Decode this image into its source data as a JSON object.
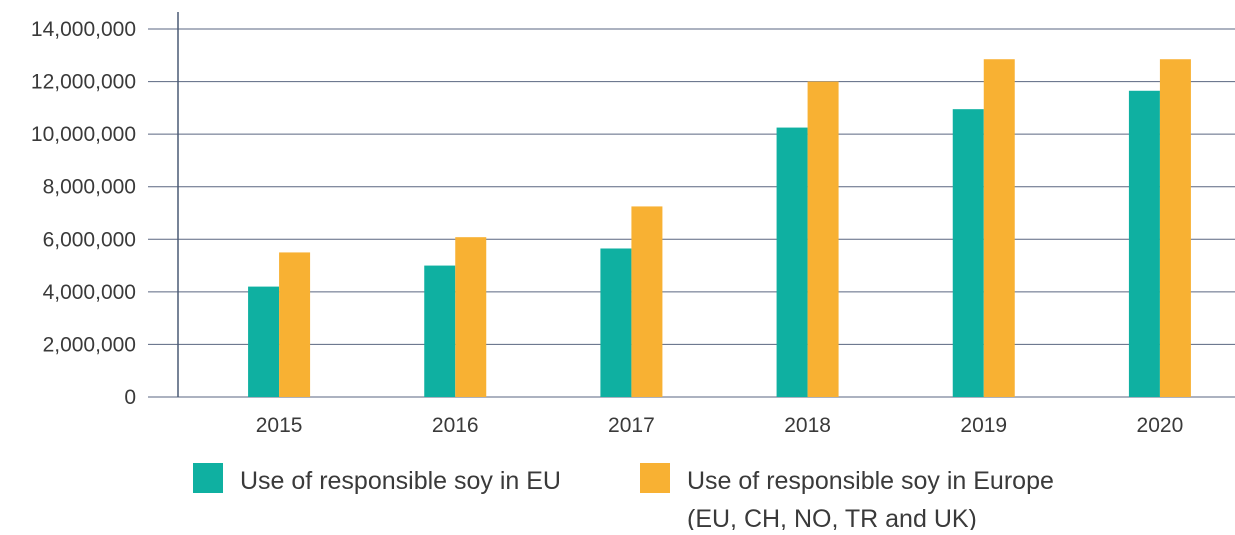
{
  "chart_data": {
    "type": "bar",
    "categories": [
      "2015",
      "2016",
      "2017",
      "2018",
      "2019",
      "2020"
    ],
    "series": [
      {
        "name": "Use of responsible soy in EU",
        "color": "#0fb0a1",
        "values": [
          4200000,
          5000000,
          5650000,
          10250000,
          10950000,
          11650000
        ]
      },
      {
        "name": "Use of responsible soy in Europe (EU, CH, NO, TR and UK)",
        "name_lines": [
          "Use of responsible soy in Europe",
          "(EU, CH, NO, TR and UK)"
        ],
        "color": "#f8b133",
        "values": [
          5500000,
          6080000,
          7250000,
          12000000,
          12850000,
          12850000
        ]
      }
    ],
    "ylim": [
      0,
      14000000
    ],
    "yticks": [
      0,
      2000000,
      4000000,
      6000000,
      8000000,
      10000000,
      12000000,
      14000000
    ],
    "ytick_labels": [
      "0",
      "2,000,000",
      "4,000,000",
      "6,000,000",
      "8,000,000",
      "10,000,000",
      "12,000,000",
      "14,000,000"
    ],
    "title": "",
    "xlabel": "",
    "ylabel": "",
    "grid": true,
    "legend_position": "bottom",
    "axis_color": "#4a5a75",
    "grid_color": "#5a6680"
  }
}
